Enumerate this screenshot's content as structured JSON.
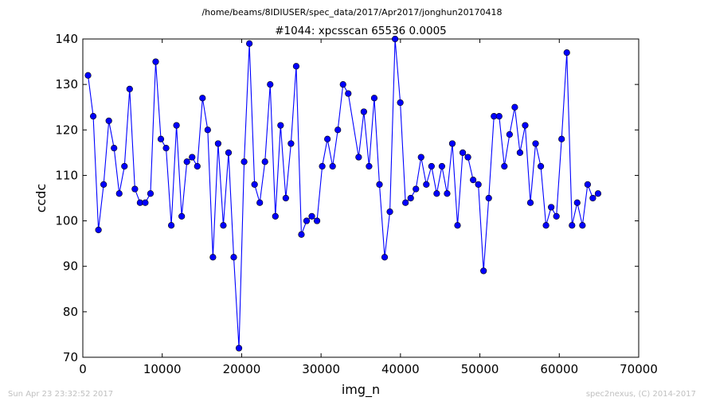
{
  "header": {
    "path": "/home/beams/8IDIUSER/spec_data/2017/Apr2017/jonghun20170418"
  },
  "footer": {
    "timestamp": "Sun Apr 23 23:32:52 2017",
    "credit": "spec2nexus, (C) 2014-2017"
  },
  "colors": {
    "series": "#0000ff",
    "axis": "#000000",
    "footer": "#c0c0c0"
  },
  "chart_data": {
    "type": "line",
    "title": "#1044: xpcsscan 65536 0.0005",
    "xlabel": "img_n",
    "ylabel": "ccdc",
    "xlim": [
      0,
      70000
    ],
    "ylim": [
      70,
      140
    ],
    "xticks": [
      0,
      10000,
      20000,
      30000,
      40000,
      50000,
      60000,
      70000
    ],
    "yticks": [
      70,
      80,
      90,
      100,
      110,
      120,
      130,
      140
    ],
    "grid": false,
    "legend": "none",
    "markers": true,
    "series": [
      {
        "x": [
          655,
          1311,
          1966,
          2621,
          3277,
          3932,
          4588,
          5243,
          5898,
          6554,
          7209,
          7864,
          8520,
          9175,
          9830,
          10486,
          11141,
          11796,
          12452,
          13107,
          13763,
          14418,
          15073,
          15729,
          16384,
          17039,
          17695,
          18350,
          19005,
          19661,
          20316,
          20972,
          21627,
          22282,
          22938,
          23593,
          24248,
          24904,
          25559,
          26214,
          26870,
          27525,
          28180,
          28836,
          29491,
          30147,
          30802,
          31457,
          32113,
          32768,
          33423,
          34734,
          35389,
          36045,
          36700,
          37356,
          38011,
          38666,
          39322,
          39977,
          40632,
          41288,
          41943,
          42598,
          43254,
          43909,
          44564,
          45220,
          45875,
          46531,
          47186,
          47841,
          48497,
          49152,
          49807,
          50463,
          51118,
          51773,
          52429,
          53084,
          53740,
          54395,
          55050,
          55706,
          56361,
          57016,
          57672,
          58327,
          58982,
          59638,
          60293,
          60948,
          61604,
          62259,
          62915,
          63570,
          64225,
          64881
        ],
        "y": [
          132,
          123,
          98,
          108,
          122,
          116,
          106,
          112,
          129,
          107,
          104,
          104,
          106,
          135,
          118,
          116,
          99,
          121,
          101,
          113,
          114,
          112,
          127,
          120,
          92,
          117,
          99,
          115,
          92,
          72,
          113,
          139,
          108,
          104,
          113,
          130,
          101,
          121,
          105,
          117,
          134,
          97,
          100,
          101,
          100,
          112,
          118,
          112,
          120,
          130,
          128,
          114,
          124,
          112,
          127,
          108,
          92,
          102,
          140,
          126,
          104,
          105,
          107,
          114,
          108,
          112,
          106,
          112,
          106,
          117,
          99,
          115,
          114,
          109,
          108,
          89,
          105,
          123,
          123,
          112,
          119,
          125,
          115,
          121,
          104,
          117,
          112,
          99,
          103,
          101,
          118,
          137,
          99,
          104,
          99,
          108,
          105,
          106
        ]
      }
    ]
  }
}
